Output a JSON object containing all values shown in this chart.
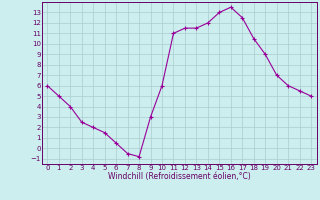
{
  "x": [
    0,
    1,
    2,
    3,
    4,
    5,
    6,
    7,
    8,
    9,
    10,
    11,
    12,
    13,
    14,
    15,
    16,
    17,
    18,
    19,
    20,
    21,
    22,
    23
  ],
  "y": [
    6,
    5,
    4,
    2.5,
    2,
    1.5,
    0.5,
    -0.5,
    -0.8,
    3,
    6,
    11,
    11.5,
    11.5,
    12,
    13,
    13.5,
    12.5,
    10.5,
    9,
    7,
    6,
    5.5,
    5
  ],
  "line_color": "#990099",
  "marker": "+",
  "marker_size": 3,
  "marker_lw": 0.8,
  "line_width": 0.8,
  "bg_color": "#cceeee",
  "grid_color": "#aacccc",
  "xlabel": "Windchill (Refroidissement éolien,°C)",
  "xlabel_color": "#660066",
  "xlabel_fontsize": 5.5,
  "tick_color": "#660066",
  "tick_fontsize": 5,
  "xlim": [
    -0.5,
    23.5
  ],
  "ylim": [
    -1.5,
    14.0
  ],
  "yticks": [
    -1,
    0,
    1,
    2,
    3,
    4,
    5,
    6,
    7,
    8,
    9,
    10,
    11,
    12,
    13
  ],
  "xticks": [
    0,
    1,
    2,
    3,
    4,
    5,
    6,
    7,
    8,
    9,
    10,
    11,
    12,
    13,
    14,
    15,
    16,
    17,
    18,
    19,
    20,
    21,
    22,
    23
  ],
  "spine_color": "#660066"
}
